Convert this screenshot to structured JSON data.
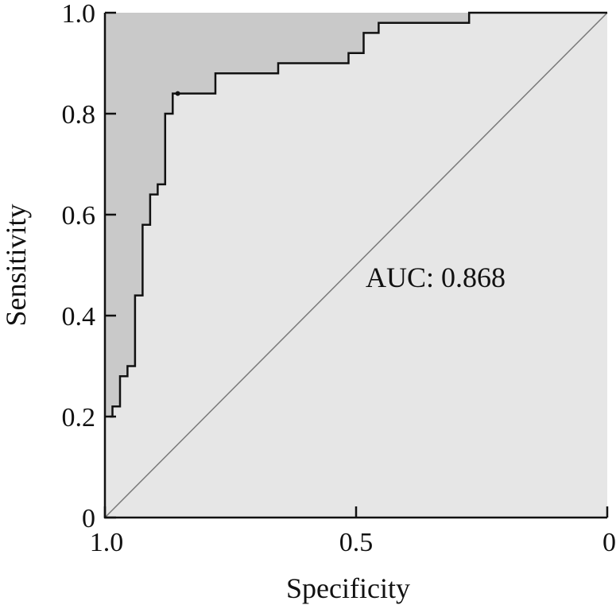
{
  "chart_data": {
    "type": "line",
    "title": "",
    "xlabel": "Specificity",
    "ylabel": "Sensitivity",
    "xlim": [
      1.0,
      0
    ],
    "ylim": [
      0,
      1.0
    ],
    "x_reversed": true,
    "x_ticks": [
      {
        "value": 1.0,
        "label": "1.0"
      },
      {
        "value": 0.5,
        "label": "0.5"
      },
      {
        "value": 0,
        "label": "0"
      }
    ],
    "y_ticks": [
      {
        "value": 0,
        "label": "0"
      },
      {
        "value": 0.2,
        "label": "0.2"
      },
      {
        "value": 0.4,
        "label": "0.4"
      },
      {
        "value": 0.6,
        "label": "0.6"
      },
      {
        "value": 0.8,
        "label": "0.8"
      },
      {
        "value": 1.0,
        "label": "1.0"
      }
    ],
    "grid": false,
    "annotation": "AUC: 0.868",
    "auc": 0.868,
    "threshold_point": {
      "specificity": 0.855,
      "sensitivity": 0.84
    },
    "colors": {
      "plot_background": "#e6e6e6",
      "area_above_curve": "#c9c9c9",
      "curve": "#111111",
      "diagonal": "#7a7a7a",
      "axes": "#111111"
    },
    "series": [
      {
        "x": [
          0.99,
          0.99,
          0.985,
          0.985,
          0.97,
          0.97,
          0.955,
          0.955,
          0.94,
          0.94,
          0.925,
          0.925,
          0.91,
          0.91,
          0.895,
          0.895,
          0.88,
          0.88,
          0.865,
          0.865,
          0.855,
          0.855,
          0.78,
          0.78,
          0.655,
          0.655,
          0.515,
          0.515,
          0.485,
          0.485,
          0.455,
          0.455,
          0.275,
          0.275,
          0.0
        ],
        "y": [
          0.2,
          0.2,
          0.2,
          0.22,
          0.22,
          0.28,
          0.28,
          0.3,
          0.3,
          0.44,
          0.44,
          0.58,
          0.58,
          0.64,
          0.64,
          0.66,
          0.66,
          0.8,
          0.8,
          0.84,
          0.84,
          0.84,
          0.84,
          0.88,
          0.88,
          0.9,
          0.9,
          0.92,
          0.92,
          0.96,
          0.96,
          0.98,
          0.98,
          1.0,
          1.0
        ]
      }
    ]
  }
}
